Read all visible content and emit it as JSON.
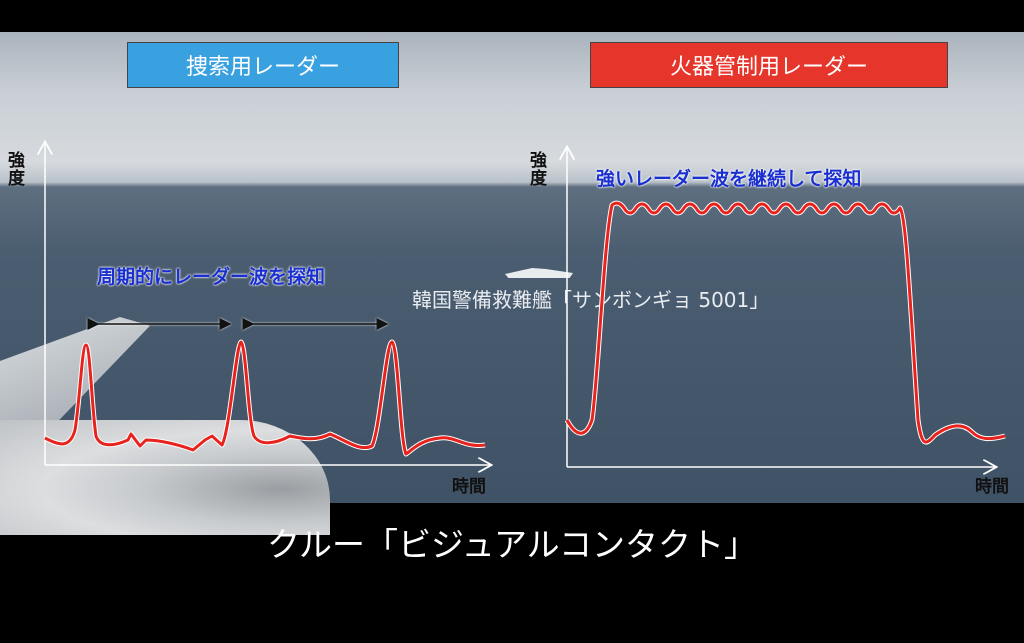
{
  "panels": {
    "left": {
      "title": "捜索用レーダー",
      "title_color": "#3aa1e0",
      "y_axis_label": "強度",
      "x_axis_label": "時間",
      "annotation": "周期的にレーダー波を探知"
    },
    "right": {
      "title": "火器管制用レーダー",
      "title_color": "#e6362b",
      "y_axis_label": "強度",
      "x_axis_label": "時間",
      "annotation": "強いレーダー波を継続して探知"
    }
  },
  "ship_label": "韓国警備救難艦「サンボンギョ 5001」",
  "caption": "クルー「ビジュアルコンタクト」",
  "signal_color": "#e8231e"
}
